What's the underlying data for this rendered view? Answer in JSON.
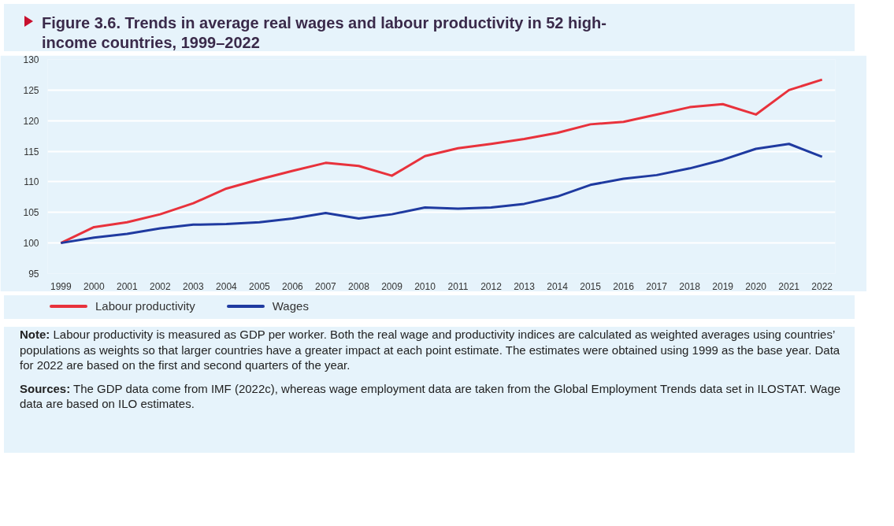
{
  "chart_data": {
    "type": "line",
    "title": "Figure 3.6.  Trends in average real wages and labour productivity in 52 high-income countries, 1999–2022",
    "categories": [
      "1999",
      "2000",
      "2001",
      "2002",
      "2003",
      "2004",
      "2005",
      "2006",
      "2007",
      "2008",
      "2009",
      "2010",
      "2011",
      "2012",
      "2013",
      "2014",
      "2015",
      "2016",
      "2017",
      "2018",
      "2019",
      "2020",
      "2021",
      "2022"
    ],
    "series": [
      {
        "name": "Labour productivity",
        "color": "#e8323c",
        "values": [
          100,
          102.6,
          103.4,
          104.7,
          106.5,
          108.9,
          110.4,
          111.8,
          113.1,
          112.6,
          111.0,
          114.2,
          115.5,
          116.2,
          117.0,
          118.0,
          119.4,
          119.8,
          121.0,
          122.2,
          122.7,
          121.0,
          125.0,
          126.7
        ]
      },
      {
        "name": "Wages",
        "color": "#1f3aa0",
        "values": [
          100,
          100.9,
          101.5,
          102.4,
          103.0,
          103.1,
          103.4,
          104.0,
          104.9,
          104.0,
          104.7,
          105.8,
          105.6,
          105.8,
          106.4,
          107.6,
          109.5,
          110.5,
          111.1,
          112.2,
          113.6,
          115.4,
          116.2,
          114.1
        ]
      }
    ],
    "ylim": [
      95,
      130
    ],
    "yticks": [
      95,
      100,
      105,
      110,
      115,
      120,
      125,
      130
    ],
    "grid": "y",
    "legend": "bottom",
    "marker": "none",
    "line_style": "solid",
    "annotations": [
      "Note: Labour productivity is measured as GDP per worker. Both the real wage and productivity indices are calculated as weighted averages using countries’ populations as weights so that larger countries have a greater impact at each point estimate. The estimates were obtained using 1999 as the base year. Data for 2022 are based on the first and second quarters of the year.",
      "Sources: The GDP data come from IMF (2022c), whereas wage employment data are taken from the Global Employment Trends data set in ILOSTAT. Wage data are based on ILO estimates."
    ]
  }
}
